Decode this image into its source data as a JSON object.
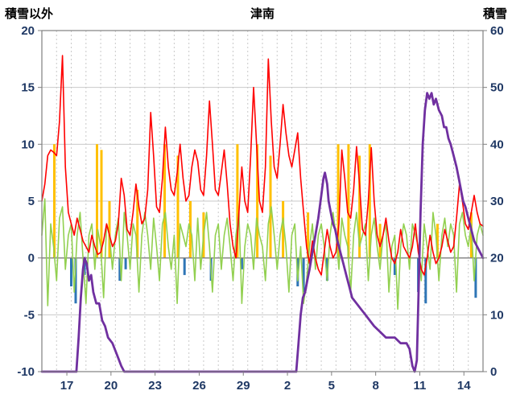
{
  "header": {
    "left_axis_title": "積雪以外",
    "chart_title": "津南",
    "right_axis_title": "積雪"
  },
  "chart_data": {
    "type": "line",
    "title": "津南",
    "left_axis": {
      "label": "積雪以外",
      "min": -10,
      "max": 20,
      "tick_step": 5
    },
    "right_axis": {
      "label": "積雪",
      "min": 0,
      "max": 60,
      "tick_step": 10
    },
    "x_axis": {
      "domain": [
        0,
        30
      ],
      "tick_labels": [
        "17",
        "20",
        "23",
        "26",
        "29",
        "2",
        "5",
        "8",
        "11",
        "14"
      ],
      "tick_days": [
        1.7,
        4.7,
        7.7,
        10.7,
        13.7,
        16.7,
        19.7,
        22.7,
        25.7,
        28.7
      ]
    },
    "colors": {
      "grid": "#C9C9C9",
      "border": "#808080",
      "zero_line": "#7F7F7F",
      "tick_label": "#1F3864"
    },
    "series": {
      "red_line": {
        "kind": "line",
        "axis": "left",
        "color": "#FF0000",
        "x0": 0,
        "dx": 0.2,
        "values": [
          5,
          6.5,
          9,
          9.5,
          9.3,
          9,
          12,
          17.8,
          8,
          4,
          3,
          2,
          3.5,
          2.5,
          1.5,
          1,
          0.5,
          2,
          1,
          0.3,
          0.5,
          1.5,
          3,
          2,
          1,
          1.5,
          3,
          7,
          5.5,
          2.5,
          2,
          4,
          6.5,
          4.5,
          3,
          3.5,
          6,
          12.8,
          9,
          4.5,
          4,
          7,
          11.5,
          8,
          6,
          5.5,
          7.5,
          10,
          7,
          5,
          5.5,
          8,
          9.5,
          8.5,
          6,
          5.5,
          9,
          13.8,
          10,
          6,
          5.5,
          7.5,
          9.5,
          6.5,
          3,
          1,
          0,
          4,
          8,
          5,
          4,
          9,
          15,
          10,
          5,
          4,
          8,
          17.5,
          12,
          8,
          7,
          10,
          13.5,
          11,
          9,
          8,
          9.5,
          11,
          7,
          4,
          1,
          -0.5,
          1.5,
          0,
          -1,
          -1.5,
          0.5,
          2.5,
          1,
          0,
          0.5,
          3,
          9.5,
          7,
          4,
          3.5,
          6,
          9.8,
          6.5,
          2.5,
          2,
          5,
          9.7,
          5,
          2,
          1,
          2,
          3.5,
          1.5,
          0,
          -0.5,
          0.5,
          2.5,
          1,
          0.5,
          0,
          1,
          3,
          0.5,
          -1,
          -1.5,
          0,
          2,
          0.5,
          -0.5,
          0,
          1,
          2.5,
          1.5,
          0.5,
          1,
          3.5,
          6.5,
          5,
          3,
          2.5,
          4,
          5.5,
          4,
          3,
          2.8
        ]
      },
      "green_line": {
        "kind": "line",
        "axis": "left",
        "color": "#92D050",
        "x0": 0,
        "dx": 0.2,
        "values": [
          2,
          5.2,
          -4.2,
          3,
          1,
          -2,
          3.5,
          4.5,
          -1,
          2,
          3,
          -3,
          2,
          4,
          0,
          -4,
          2,
          3,
          -1,
          2.5,
          1,
          -3.5,
          3,
          2,
          -1,
          2,
          3.5,
          -2,
          4,
          2,
          -1,
          3,
          2,
          -3,
          2,
          4,
          2,
          -1,
          3.5,
          1,
          -2,
          3,
          4,
          1,
          -1,
          2,
          -4,
          3,
          2,
          1,
          3,
          2,
          -2,
          3.5,
          -1,
          2,
          4,
          1,
          -3,
          2,
          3,
          -1,
          2,
          3.5,
          1,
          -2,
          2,
          4,
          -4,
          1,
          3,
          2,
          -1,
          3.5,
          2,
          1,
          -2,
          3,
          4.5,
          2,
          -1,
          2,
          3.5,
          1,
          -3,
          2,
          3,
          -2,
          1,
          -4,
          -2,
          1,
          3,
          -1,
          2,
          3,
          1,
          -2,
          2,
          4,
          2,
          -1,
          3.5,
          2,
          1,
          -3,
          2,
          4,
          1,
          2,
          3,
          -2,
          2,
          3.5,
          1,
          -1,
          2,
          3,
          -3,
          1,
          2,
          -4.5,
          1,
          3,
          2,
          -1,
          3,
          2,
          1,
          -2,
          3,
          1,
          -1,
          4,
          2,
          -2,
          2,
          3.5,
          1,
          3,
          2,
          -3,
          3,
          4,
          2,
          1,
          3,
          -2,
          2,
          3,
          2
        ]
      },
      "purple_line": {
        "kind": "line",
        "axis": "right",
        "color": "#7030A0",
        "points": [
          [
            0,
            0
          ],
          [
            2.35,
            0
          ],
          [
            2.5,
            6
          ],
          [
            2.65,
            13
          ],
          [
            2.8,
            18
          ],
          [
            2.9,
            20
          ],
          [
            3.05,
            19
          ],
          [
            3.2,
            16
          ],
          [
            3.35,
            17
          ],
          [
            3.5,
            14
          ],
          [
            3.7,
            12
          ],
          [
            3.9,
            12
          ],
          [
            4.1,
            9
          ],
          [
            4.3,
            8
          ],
          [
            4.5,
            6
          ],
          [
            4.8,
            5
          ],
          [
            5.1,
            3
          ],
          [
            5.4,
            1
          ],
          [
            5.6,
            0
          ],
          [
            17.3,
            0
          ],
          [
            17.45,
            5
          ],
          [
            17.6,
            10
          ],
          [
            17.75,
            13
          ],
          [
            17.9,
            14
          ],
          [
            18.05,
            16
          ],
          [
            18.2,
            18
          ],
          [
            18.4,
            21
          ],
          [
            18.6,
            24
          ],
          [
            18.8,
            27
          ],
          [
            19.0,
            31
          ],
          [
            19.15,
            34
          ],
          [
            19.25,
            35
          ],
          [
            19.4,
            33
          ],
          [
            19.5,
            30
          ],
          [
            19.65,
            28
          ],
          [
            19.8,
            26
          ],
          [
            19.95,
            25
          ],
          [
            20.1,
            23
          ],
          [
            20.3,
            21
          ],
          [
            20.5,
            19
          ],
          [
            20.7,
            17
          ],
          [
            20.9,
            15
          ],
          [
            21.1,
            13
          ],
          [
            21.4,
            12
          ],
          [
            21.7,
            11
          ],
          [
            22.0,
            10
          ],
          [
            22.3,
            9
          ],
          [
            22.6,
            8
          ],
          [
            23.0,
            7
          ],
          [
            23.4,
            6
          ],
          [
            24.0,
            6
          ],
          [
            24.4,
            5
          ],
          [
            24.8,
            5
          ],
          [
            25.0,
            4
          ],
          [
            25.2,
            1
          ],
          [
            25.35,
            0
          ],
          [
            25.5,
            2
          ],
          [
            25.6,
            12
          ],
          [
            25.75,
            28
          ],
          [
            25.9,
            40
          ],
          [
            26.05,
            46
          ],
          [
            26.2,
            49
          ],
          [
            26.35,
            48
          ],
          [
            26.5,
            49
          ],
          [
            26.65,
            47
          ],
          [
            26.8,
            48
          ],
          [
            27.0,
            46
          ],
          [
            27.2,
            45
          ],
          [
            27.35,
            43
          ],
          [
            27.5,
            43
          ],
          [
            27.65,
            41
          ],
          [
            27.8,
            40
          ],
          [
            28.0,
            38
          ],
          [
            28.2,
            36
          ],
          [
            28.35,
            34
          ],
          [
            28.5,
            32
          ],
          [
            28.65,
            30
          ],
          [
            28.8,
            29
          ],
          [
            29.0,
            27
          ],
          [
            29.2,
            25
          ],
          [
            29.4,
            23
          ],
          [
            29.6,
            22
          ],
          [
            29.8,
            21
          ],
          [
            30,
            20
          ]
        ]
      },
      "orange_bars": {
        "kind": "bar",
        "axis": "left",
        "color": "#FFC000",
        "bars": [
          [
            0.85,
            10
          ],
          [
            3.75,
            10
          ],
          [
            4.05,
            9.5
          ],
          [
            4.6,
            5
          ],
          [
            6.5,
            6
          ],
          [
            8.35,
            10
          ],
          [
            9.25,
            9
          ],
          [
            10.1,
            5
          ],
          [
            11.0,
            4
          ],
          [
            13.3,
            10
          ],
          [
            14.65,
            10
          ],
          [
            15.55,
            9
          ],
          [
            16.4,
            5
          ],
          [
            18.1,
            4
          ],
          [
            20.15,
            10
          ],
          [
            20.85,
            10
          ],
          [
            21.6,
            9
          ],
          [
            22.3,
            10
          ],
          [
            23.0,
            3
          ],
          [
            26.9,
            3
          ],
          [
            29.2,
            4
          ]
        ]
      },
      "blue_bars": {
        "kind": "bar",
        "axis": "left",
        "color": "#2E75B6",
        "bars": [
          [
            2.0,
            -2.5
          ],
          [
            2.3,
            -4
          ],
          [
            2.9,
            -1.5
          ],
          [
            5.3,
            -2
          ],
          [
            5.7,
            -1
          ],
          [
            9.7,
            -1.5
          ],
          [
            11.5,
            -2
          ],
          [
            13.6,
            -1
          ],
          [
            17.4,
            -2.5
          ],
          [
            17.8,
            -3
          ],
          [
            19.4,
            -2
          ],
          [
            24.0,
            -1.5
          ],
          [
            25.6,
            -3
          ],
          [
            26.1,
            -4
          ],
          [
            29.5,
            -3.5
          ]
        ]
      }
    }
  }
}
